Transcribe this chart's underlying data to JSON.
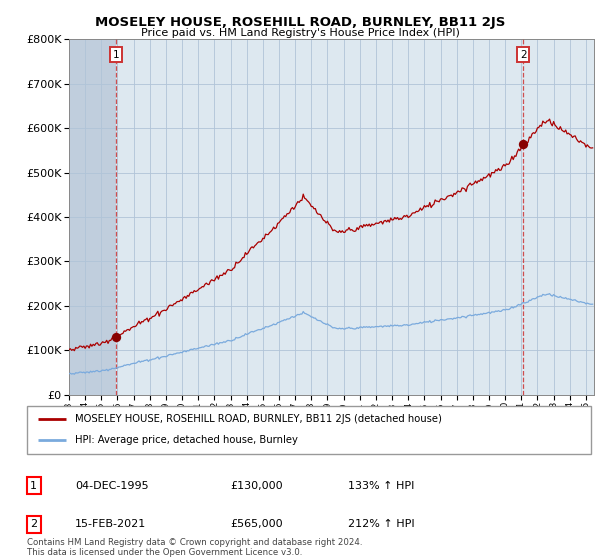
{
  "title": "MOSELEY HOUSE, ROSEHILL ROAD, BURNLEY, BB11 2JS",
  "subtitle": "Price paid vs. HM Land Registry's House Price Index (HPI)",
  "legend_label_red": "MOSELEY HOUSE, ROSEHILL ROAD, BURNLEY, BB11 2JS (detached house)",
  "legend_label_blue": "HPI: Average price, detached house, Burnley",
  "sale1_date": "04-DEC-1995",
  "sale1_price": "£130,000",
  "sale1_hpi": "133% ↑ HPI",
  "sale2_date": "15-FEB-2021",
  "sale2_price": "£565,000",
  "sale2_hpi": "212% ↑ HPI",
  "footnote": "Contains HM Land Registry data © Crown copyright and database right 2024.\nThis data is licensed under the Open Government Licence v3.0.",
  "sale1_year": 1995.92,
  "sale1_value": 130000,
  "sale2_year": 2021.12,
  "sale2_value": 565000,
  "hpi_color": "#7aaadd",
  "red_color": "#aa0000",
  "dot_color": "#880000",
  "bg_color": "#dde8f0",
  "hatch_color": "#c0cedd",
  "grid_color": "#b0c4d8",
  "vline_color": "#cc3333",
  "ylim_min": 0,
  "ylim_max": 800000,
  "xlim_min": 1993.0,
  "xlim_max": 2025.5,
  "ytick_step": 100000
}
